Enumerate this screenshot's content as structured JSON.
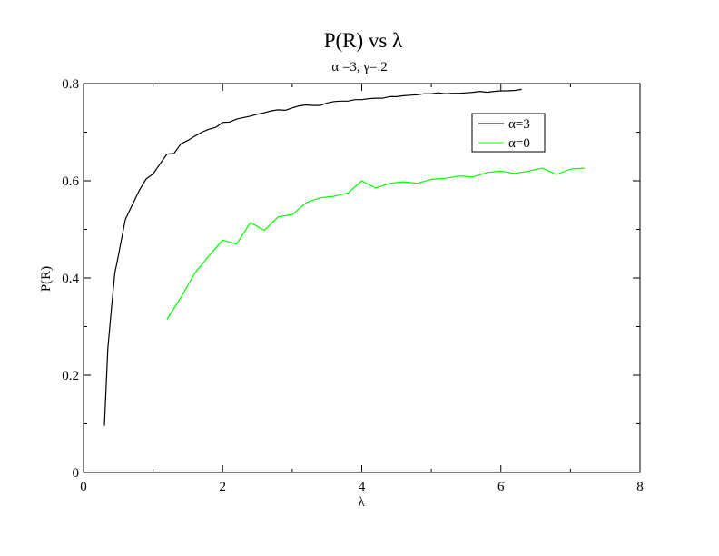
{
  "chart_data": {
    "type": "line",
    "title": "P(R) vs λ",
    "subtitle": "α =3, γ=.2",
    "xlabel": "λ",
    "ylabel": "P(R)",
    "xlim": [
      0,
      8
    ],
    "ylim": [
      0,
      0.8
    ],
    "xticks": [
      0,
      2,
      4,
      6,
      8
    ],
    "yticks": [
      0,
      0.2,
      0.4,
      0.6,
      0.8
    ],
    "xtick_labels": [
      "0",
      "2",
      "4",
      "6",
      "8"
    ],
    "ytick_labels": [
      "0",
      "0.2",
      "0.4",
      "0.6",
      "0.8"
    ],
    "grid": false,
    "legend_position": "top-right",
    "series": [
      {
        "name": "α=3",
        "color": "#000000",
        "x": [
          0.3,
          0.35,
          0.4,
          0.45,
          0.5,
          0.6,
          0.7,
          0.8,
          0.9,
          1.0,
          1.1,
          1.2,
          1.3,
          1.4,
          1.5,
          1.6,
          1.7,
          1.8,
          1.9,
          2.0,
          2.1,
          2.2,
          2.3,
          2.4,
          2.5,
          2.6,
          2.7,
          2.8,
          2.9,
          3.0,
          3.1,
          3.2,
          3.3,
          3.4,
          3.5,
          3.6,
          3.7,
          3.8,
          3.9,
          4.0,
          4.1,
          4.2,
          4.3,
          4.4,
          4.5,
          4.6,
          4.7,
          4.8,
          4.9,
          5.0,
          5.1,
          5.2,
          5.3,
          5.4,
          5.5,
          5.6,
          5.7,
          5.8,
          5.9,
          6.0,
          6.1,
          6.2,
          6.3
        ],
        "y": [
          0.096,
          0.255,
          0.336,
          0.41,
          0.445,
          0.52,
          0.55,
          0.58,
          0.604,
          0.614,
          0.635,
          0.655,
          0.656,
          0.676,
          0.683,
          0.692,
          0.7,
          0.706,
          0.71,
          0.72,
          0.721,
          0.727,
          0.73,
          0.733,
          0.737,
          0.74,
          0.744,
          0.746,
          0.745,
          0.75,
          0.754,
          0.756,
          0.755,
          0.755,
          0.76,
          0.763,
          0.764,
          0.764,
          0.767,
          0.767,
          0.769,
          0.77,
          0.77,
          0.773,
          0.773,
          0.775,
          0.776,
          0.777,
          0.779,
          0.779,
          0.781,
          0.779,
          0.78,
          0.78,
          0.781,
          0.782,
          0.784,
          0.782,
          0.784,
          0.785,
          0.785,
          0.786,
          0.788
        ]
      },
      {
        "name": "α=0",
        "color": "#00ff00",
        "x": [
          1.2,
          1.4,
          1.6,
          1.8,
          2.0,
          2.2,
          2.4,
          2.6,
          2.8,
          3.0,
          3.2,
          3.4,
          3.6,
          3.8,
          4.0,
          4.2,
          4.4,
          4.6,
          4.8,
          5.0,
          5.2,
          5.4,
          5.6,
          5.8,
          6.0,
          6.2,
          6.4,
          6.6,
          6.8,
          7.0,
          7.2
        ],
        "y": [
          0.315,
          0.36,
          0.41,
          0.445,
          0.478,
          0.47,
          0.514,
          0.498,
          0.526,
          0.53,
          0.555,
          0.565,
          0.568,
          0.575,
          0.6,
          0.585,
          0.595,
          0.598,
          0.595,
          0.603,
          0.605,
          0.61,
          0.608,
          0.617,
          0.62,
          0.615,
          0.62,
          0.626,
          0.613,
          0.624,
          0.626
        ]
      }
    ]
  }
}
